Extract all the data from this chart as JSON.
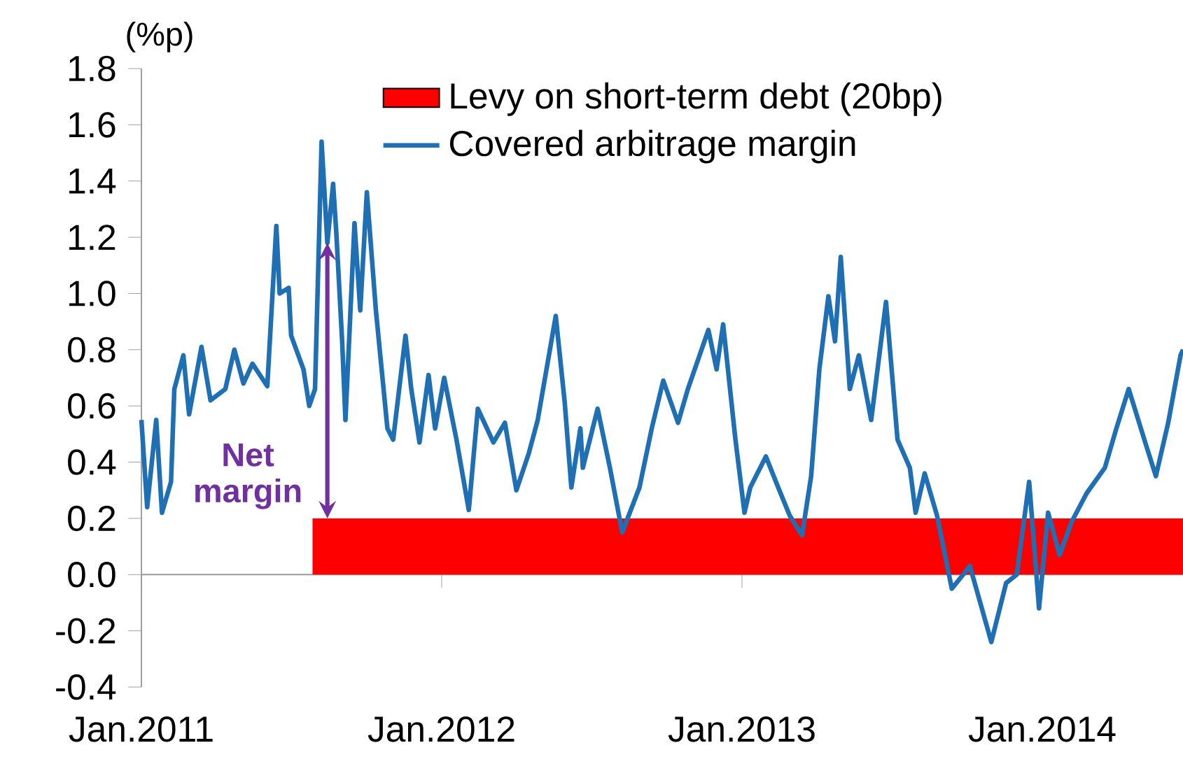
{
  "chart_data": {
    "type": "line",
    "ylabel": "(%p)",
    "xlim": [
      "2011-01-01",
      "2014-06-21"
    ],
    "xticks": [
      {
        "value": "2011-01-01",
        "label": "Jan.2011"
      },
      {
        "value": "2012-01-01",
        "label": "Jan.2012"
      },
      {
        "value": "2013-01-01",
        "label": "Jan.2013"
      },
      {
        "value": "2014-01-01",
        "label": "Jan.2014"
      }
    ],
    "ylim": [
      -0.4,
      1.8
    ],
    "yticks": [
      {
        "value": -0.4,
        "label": "-0.4"
      },
      {
        "value": -0.2,
        "label": "-0.2"
      },
      {
        "value": 0,
        "label": "0.0"
      },
      {
        "value": 0.2,
        "label": "0.2"
      },
      {
        "value": 0.4,
        "label": "0.4"
      },
      {
        "value": 0.6,
        "label": "0.6"
      },
      {
        "value": 0.8,
        "label": "0.8"
      },
      {
        "value": 1.0,
        "label": "1.0"
      },
      {
        "value": 1.2,
        "label": "1.2"
      },
      {
        "value": 1.4,
        "label": "1.4"
      },
      {
        "value": 1.6,
        "label": "1.6"
      },
      {
        "value": 1.8,
        "label": "1.8"
      }
    ],
    "legend": "top",
    "marker": "none",
    "line_style": "solid",
    "annotations": [
      {
        "text": "Net margin",
        "x": "2011-08-15",
        "y": 0.2
      }
    ],
    "series": [
      {
        "name": "Levy on short-term debt (20bp)",
        "type": "area",
        "color": "#ff0000",
        "x": [
          "2011-07-28",
          "2014-06-21"
        ],
        "values": [
          0.2,
          0.2
        ]
      },
      {
        "name": "Covered arbitrage margin",
        "color": "#1f6fb5",
        "x": [
          "2011-01-01",
          "2011-01-08",
          "2011-01-19",
          "2011-01-26",
          "2011-02-06",
          "2011-02-10",
          "2011-02-21",
          "2011-02-28",
          "2011-03-15",
          "2011-03-26",
          "2011-04-13",
          "2011-04-24",
          "2011-05-05",
          "2011-05-16",
          "2011-06-03",
          "2011-06-14",
          "2011-06-18",
          "2011-06-29",
          "2011-07-02",
          "2011-07-17",
          "2011-07-24",
          "2011-07-31",
          "2011-08-08",
          "2011-08-15",
          "2011-08-22",
          "2011-08-26",
          "2011-09-02",
          "2011-09-06",
          "2011-09-17",
          "2011-09-24",
          "2011-10-02",
          "2011-10-13",
          "2011-10-20",
          "2011-10-27",
          "2011-11-03",
          "2011-11-18",
          "2011-11-25",
          "2011-12-05",
          "2011-12-16",
          "2011-12-24",
          "2012-01-04",
          "2012-01-19",
          "2012-02-03",
          "2012-02-14",
          "2012-03-04",
          "2012-03-18",
          "2012-04-01",
          "2012-04-16",
          "2012-04-27",
          "2012-05-19",
          "2012-05-30",
          "2012-06-07",
          "2012-06-18",
          "2012-06-21",
          "2012-07-09",
          "2012-07-24",
          "2012-08-08",
          "2012-08-29",
          "2012-09-13",
          "2012-09-27",
          "2012-10-15",
          "2012-10-27",
          "2012-11-21",
          "2012-12-01",
          "2012-12-09",
          "2012-12-24",
          "2013-01-04",
          "2013-01-11",
          "2013-01-30",
          "2013-02-14",
          "2013-02-28",
          "2013-03-15",
          "2013-03-26",
          "2013-04-05",
          "2013-04-16",
          "2013-04-24",
          "2013-05-01",
          "2013-05-12",
          "2013-05-23",
          "2013-06-07",
          "2013-06-25",
          "2013-07-09",
          "2013-07-24",
          "2013-07-31",
          "2013-08-11",
          "2013-08-26",
          "2013-09-13",
          "2013-10-05",
          "2013-10-31",
          "2013-11-18",
          "2013-12-01",
          "2013-12-16",
          "2013-12-28",
          "2014-01-08",
          "2014-01-22",
          "2014-02-06",
          "2014-02-24",
          "2014-03-18",
          "2014-04-01",
          "2014-04-16",
          "2014-05-05",
          "2014-05-19",
          "2014-06-03",
          "2014-06-18",
          "2014-06-21"
        ],
        "values": [
          0.55,
          0.24,
          0.55,
          0.22,
          0.33,
          0.66,
          0.78,
          0.57,
          0.81,
          0.62,
          0.66,
          0.8,
          0.68,
          0.75,
          0.67,
          1.24,
          1.0,
          1.02,
          0.85,
          0.73,
          0.6,
          0.66,
          1.54,
          1.18,
          1.39,
          1.21,
          0.83,
          0.55,
          1.25,
          0.94,
          1.36,
          0.94,
          0.73,
          0.52,
          0.48,
          0.85,
          0.66,
          0.47,
          0.71,
          0.52,
          0.7,
          0.48,
          0.23,
          0.59,
          0.47,
          0.54,
          0.3,
          0.43,
          0.55,
          0.92,
          0.61,
          0.31,
          0.52,
          0.38,
          0.59,
          0.38,
          0.15,
          0.31,
          0.52,
          0.69,
          0.54,
          0.66,
          0.87,
          0.73,
          0.89,
          0.48,
          0.22,
          0.31,
          0.42,
          0.31,
          0.21,
          0.14,
          0.35,
          0.73,
          0.99,
          0.83,
          1.13,
          0.66,
          0.78,
          0.55,
          0.97,
          0.48,
          0.38,
          0.22,
          0.36,
          0.21,
          -0.05,
          0.03,
          -0.24,
          -0.03,
          0.0,
          0.33,
          -0.12,
          0.22,
          0.07,
          0.19,
          0.29,
          0.38,
          0.52,
          0.66,
          0.48,
          0.35,
          0.54,
          0.78,
          0.8
        ]
      }
    ]
  }
}
